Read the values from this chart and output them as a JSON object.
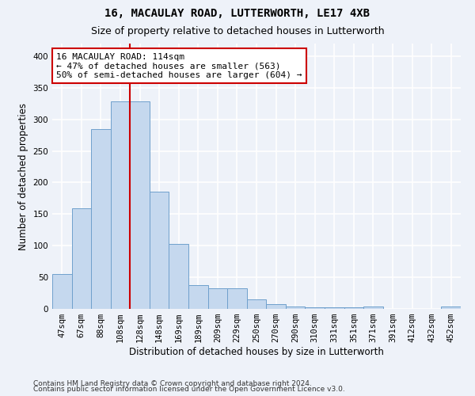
{
  "title": "16, MACAULAY ROAD, LUTTERWORTH, LE17 4XB",
  "subtitle": "Size of property relative to detached houses in Lutterworth",
  "xlabel": "Distribution of detached houses by size in Lutterworth",
  "ylabel": "Number of detached properties",
  "categories": [
    "47sqm",
    "67sqm",
    "88sqm",
    "108sqm",
    "128sqm",
    "148sqm",
    "169sqm",
    "189sqm",
    "209sqm",
    "229sqm",
    "250sqm",
    "270sqm",
    "290sqm",
    "310sqm",
    "331sqm",
    "351sqm",
    "371sqm",
    "391sqm",
    "412sqm",
    "432sqm",
    "452sqm"
  ],
  "values": [
    55,
    159,
    284,
    328,
    328,
    185,
    103,
    38,
    32,
    32,
    15,
    7,
    4,
    3,
    3,
    3,
    4,
    0,
    0,
    0,
    4
  ],
  "bar_color": "#c5d8ee",
  "bar_edge_color": "#6fa0cc",
  "highlight_line_index": 3,
  "highlight_color": "#cc0000",
  "annotation_text": "16 MACAULAY ROAD: 114sqm\n← 47% of detached houses are smaller (563)\n50% of semi-detached houses are larger (604) →",
  "annotation_box_color": "#ffffff",
  "annotation_box_edge": "#cc0000",
  "ylim": [
    0,
    420
  ],
  "yticks": [
    0,
    50,
    100,
    150,
    200,
    250,
    300,
    350,
    400
  ],
  "footer_line1": "Contains HM Land Registry data © Crown copyright and database right 2024.",
  "footer_line2": "Contains public sector information licensed under the Open Government Licence v3.0.",
  "bg_color": "#eef2f9",
  "grid_color": "#ffffff",
  "title_fontsize": 10,
  "subtitle_fontsize": 9,
  "axis_label_fontsize": 8.5,
  "tick_fontsize": 7.5,
  "footer_fontsize": 6.5
}
